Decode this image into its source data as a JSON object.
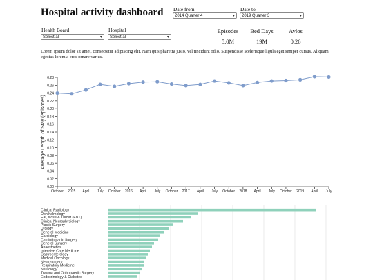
{
  "header": {
    "title": "Hospital activity dashboard"
  },
  "filters": {
    "date_from": {
      "label": "Date from",
      "value": "2014 Quarter 4"
    },
    "date_to": {
      "label": "Date to",
      "value": "2019 Quarter 3"
    },
    "health_board": {
      "label": "Health Board",
      "value": "Select all"
    },
    "hospital": {
      "label": "Hospital",
      "value": "Select all"
    }
  },
  "kpis": [
    {
      "label": "Episodes",
      "value": "5.0M"
    },
    {
      "label": "Bed Days",
      "value": "19M"
    },
    {
      "label": "Avlos",
      "value": "0.26"
    }
  ],
  "intro_text": "Lorem ipsum dolor sit amet, consectetur adipiscing elit. Nam quis pharetra justo, vel tincidunt odio. Suspendisse scelerisque ligula eget semper cursus. Aliquam egestas lorem a eros ornare varius.",
  "colors": {
    "line": "#7f9ccb",
    "bar": "#8fd1bb",
    "grid": "#dddddd"
  },
  "chart_data": [
    {
      "type": "line",
      "ylabel": "Average Length of Stay (episodes)",
      "ylim": [
        0,
        0.28
      ],
      "yticks": [
        "0.00",
        "0.02",
        "0.04",
        "0.06",
        "0.08",
        "0.10",
        "0.12",
        "0.14",
        "0.16",
        "0.18",
        "0.20",
        "0.22",
        "0.24",
        "0.26",
        "0.28"
      ],
      "xticks": [
        "October",
        "2015",
        "April",
        "July",
        "October",
        "2016",
        "April",
        "July",
        "October",
        "2017",
        "April",
        "July",
        "October",
        "2018",
        "April",
        "July",
        "October",
        "2019",
        "April",
        "July"
      ],
      "x": [
        "2014 Q4",
        "2015 Q1",
        "2015 Q2",
        "2015 Q3",
        "2015 Q4",
        "2016 Q1",
        "2016 Q2",
        "2016 Q3",
        "2016 Q4",
        "2017 Q1",
        "2017 Q2",
        "2017 Q3",
        "2017 Q4",
        "2018 Q1",
        "2018 Q2",
        "2018 Q3",
        "2018 Q4",
        "2019 Q1",
        "2019 Q2",
        "2019 Q3"
      ],
      "values": [
        0.24,
        0.238,
        0.248,
        0.262,
        0.257,
        0.264,
        0.268,
        0.269,
        0.263,
        0.259,
        0.262,
        0.271,
        0.266,
        0.259,
        0.267,
        0.271,
        0.272,
        0.274,
        0.282,
        0.281
      ],
      "grid": false
    },
    {
      "type": "bar",
      "orientation": "horizontal",
      "categories": [
        "Clinical Radiology",
        "Ophthalmology",
        "Ear, Nose & Throat (ENT)",
        "Clinical Neurophysiology",
        "Plastic Surgery",
        "Urology",
        "General Medicine",
        "Cardiology",
        "Cardiothoracic Surgery",
        "General Surgery",
        "Anaesthetics",
        "Intensive Care Medicine",
        "Gastroenterology",
        "Medical Oncology",
        "Neurosurgery",
        "Respiratory Medicine",
        "Neurology",
        "Trauma and Orthopaedic Surgery",
        "Endocrinology & Diabetes"
      ],
      "values": [
        100,
        43,
        40,
        36,
        31,
        29,
        27,
        25,
        24,
        22,
        21,
        20,
        19,
        18,
        17,
        17,
        16,
        15,
        14
      ],
      "grid": true
    }
  ]
}
